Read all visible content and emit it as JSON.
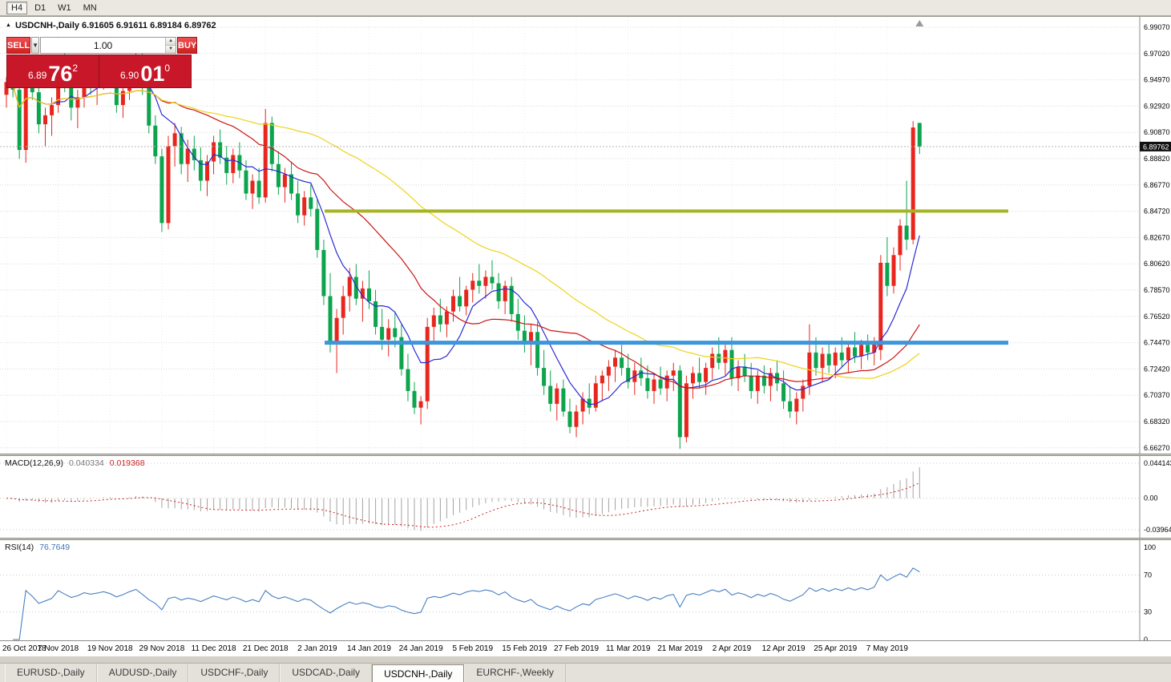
{
  "toolbar": {
    "timeframes": [
      {
        "label": "H4",
        "active": true
      },
      {
        "label": "D1",
        "active": false
      },
      {
        "label": "W1",
        "active": false
      },
      {
        "label": "MN",
        "active": false
      }
    ]
  },
  "chart": {
    "marker": "▲",
    "symbol_info": "USDCNH-,Daily 6.91605 6.91611 6.89184 6.89762",
    "current_price": "6.89762",
    "trade_panel": {
      "sell_label": "SELL",
      "buy_label": "BUY",
      "volume": "1.00",
      "sell_price": {
        "prefix": "6.89",
        "big": "76",
        "sup": "2"
      },
      "buy_price": {
        "prefix": "6.90",
        "big": "01",
        "sup": "0"
      }
    }
  },
  "macd_label": {
    "name": "MACD(12,26,9)",
    "main": "0.040334",
    "signal": "0.019368"
  },
  "rsi_label": {
    "name": "RSI(14)",
    "value": "76.7649"
  },
  "tabs": [
    {
      "label": "EURUSD-,Daily",
      "active": false
    },
    {
      "label": "AUDUSD-,Daily",
      "active": false
    },
    {
      "label": "USDCHF-,Daily",
      "active": false
    },
    {
      "label": "USDCAD-,Daily",
      "active": false
    },
    {
      "label": "USDCNH-,Daily",
      "active": true
    },
    {
      "label": "EURCHF-,Weekly",
      "active": false
    }
  ],
  "chart_data": {
    "type": "candlestick",
    "symbol": "USDCNH-",
    "timeframe": "Daily",
    "current_bar": {
      "open": 6.91605,
      "high": 6.91611,
      "low": 6.89184,
      "close": 6.89762
    },
    "price_axis_labels": [
      "6.99070",
      "6.97020",
      "6.94970",
      "6.92920",
      "6.90870",
      "6.88820",
      "6.86770",
      "6.84720",
      "6.82670",
      "6.80620",
      "6.78570",
      "6.76520",
      "6.74470",
      "6.72420",
      "6.70370",
      "6.68320",
      "6.66270"
    ],
    "date_labels": [
      "26 Oct 2018",
      "7 Nov 2018",
      "19 Nov 2018",
      "29 Nov 2018",
      "11 Dec 2018",
      "21 Dec 2018",
      "2 Jan 2019",
      "14 Jan 2019",
      "24 Jan 2019",
      "5 Feb 2019",
      "15 Feb 2019",
      "27 Feb 2019",
      "11 Mar 2019",
      "21 Mar 2019",
      "2 Apr 2019",
      "12 Apr 2019",
      "25 Apr 2019",
      "7 May 2019"
    ],
    "colors": {
      "bull": "#e8261e",
      "bear": "#0ca44d",
      "grid": "#d9d9d9",
      "bid_line": "#b9b9b9",
      "axis_text": "#000000",
      "price_tag_bg": "#111111"
    },
    "moving_averages": [
      {
        "period": 8,
        "color": "#2b2bd4"
      },
      {
        "period": 24,
        "color": "#cc1414"
      },
      {
        "period": 52,
        "color": "#edd317"
      }
    ],
    "levels": [
      {
        "name": "resistance-line",
        "price": 6.8473,
        "color": "#a6b420",
        "width": 4
      },
      {
        "name": "support-line",
        "price": 6.7447,
        "color": "#3d96da",
        "width": 5
      }
    ],
    "macd": {
      "fast": 12,
      "slow": 26,
      "signal": 9,
      "histogram_color": "#a3a3a3",
      "signal_color": "#cc2222",
      "axis_labels": [
        "0.044143",
        "0.00",
        "-0.039641"
      ]
    },
    "rsi": {
      "period": 14,
      "color": "#477fc0",
      "levels": [
        70,
        30
      ],
      "axis_labels": [
        "100",
        "70",
        "30",
        "0"
      ]
    },
    "ohlc": [
      [
        6.938,
        6.952,
        6.928,
        6.948
      ],
      [
        6.948,
        6.958,
        6.936,
        6.942
      ],
      [
        6.942,
        6.948,
        6.888,
        6.895
      ],
      [
        6.895,
        6.962,
        6.885,
        6.955
      ],
      [
        6.955,
        6.966,
        6.934,
        6.94
      ],
      [
        6.94,
        6.948,
        6.908,
        6.915
      ],
      [
        6.915,
        6.928,
        6.898,
        6.922
      ],
      [
        6.922,
        6.936,
        6.906,
        6.93
      ],
      [
        6.93,
        6.966,
        6.924,
        6.96
      ],
      [
        6.96,
        6.972,
        6.94,
        6.945
      ],
      [
        6.945,
        6.952,
        6.918,
        6.928
      ],
      [
        6.928,
        6.942,
        6.912,
        6.936
      ],
      [
        6.936,
        6.958,
        6.928,
        6.952
      ],
      [
        6.952,
        6.963,
        6.938,
        6.944
      ],
      [
        6.944,
        6.956,
        6.93,
        6.95
      ],
      [
        6.95,
        6.966,
        6.942,
        6.958
      ],
      [
        6.958,
        6.968,
        6.944,
        6.948
      ],
      [
        6.948,
        6.956,
        6.924,
        6.93
      ],
      [
        6.93,
        6.946,
        6.92,
        6.941
      ],
      [
        6.941,
        6.962,
        6.934,
        6.956
      ],
      [
        6.956,
        6.976,
        6.948,
        6.968
      ],
      [
        6.968,
        6.973,
        6.938,
        6.944
      ],
      [
        6.944,
        6.95,
        6.908,
        6.914
      ],
      [
        6.914,
        6.922,
        6.884,
        6.89
      ],
      [
        6.89,
        6.896,
        6.831,
        6.838
      ],
      [
        6.838,
        6.906,
        6.833,
        6.898
      ],
      [
        6.898,
        6.916,
        6.882,
        6.908
      ],
      [
        6.908,
        6.913,
        6.876,
        6.884
      ],
      [
        6.884,
        6.903,
        6.87,
        6.896
      ],
      [
        6.896,
        6.906,
        6.879,
        6.887
      ],
      [
        6.887,
        6.897,
        6.863,
        6.871
      ],
      [
        6.871,
        6.891,
        6.859,
        6.886
      ],
      [
        6.886,
        6.906,
        6.876,
        6.901
      ],
      [
        6.901,
        6.911,
        6.884,
        6.889
      ],
      [
        6.889,
        6.898,
        6.868,
        6.877
      ],
      [
        6.877,
        6.896,
        6.869,
        6.891
      ],
      [
        6.891,
        6.901,
        6.873,
        6.879
      ],
      [
        6.879,
        6.887,
        6.856,
        6.861
      ],
      [
        6.861,
        6.876,
        6.849,
        6.871
      ],
      [
        6.871,
        6.881,
        6.853,
        6.858
      ],
      [
        6.858,
        6.927,
        6.854,
        6.916
      ],
      [
        6.916,
        6.921,
        6.878,
        6.884
      ],
      [
        6.884,
        6.894,
        6.86,
        6.866
      ],
      [
        6.866,
        6.881,
        6.854,
        6.876
      ],
      [
        6.876,
        6.886,
        6.856,
        6.861
      ],
      [
        6.861,
        6.871,
        6.838,
        6.844
      ],
      [
        6.844,
        6.863,
        6.836,
        6.858
      ],
      [
        6.858,
        6.868,
        6.843,
        6.849
      ],
      [
        6.849,
        6.857,
        6.811,
        6.817
      ],
      [
        6.817,
        6.825,
        6.774,
        6.781
      ],
      [
        6.781,
        6.799,
        6.737,
        6.744
      ],
      [
        6.744,
        6.771,
        6.721,
        6.764
      ],
      [
        6.764,
        6.789,
        6.751,
        6.781
      ],
      [
        6.781,
        6.803,
        6.769,
        6.796
      ],
      [
        6.796,
        6.806,
        6.774,
        6.779
      ],
      [
        6.779,
        6.793,
        6.761,
        6.787
      ],
      [
        6.787,
        6.801,
        6.771,
        6.777
      ],
      [
        6.777,
        6.786,
        6.751,
        6.757
      ],
      [
        6.757,
        6.771,
        6.739,
        6.747
      ],
      [
        6.747,
        6.763,
        6.734,
        6.756
      ],
      [
        6.756,
        6.769,
        6.741,
        6.749
      ],
      [
        6.749,
        6.759,
        6.719,
        6.724
      ],
      [
        6.724,
        6.736,
        6.699,
        6.707
      ],
      [
        6.707,
        6.714,
        6.689,
        6.694
      ],
      [
        6.694,
        6.703,
        6.681,
        6.699
      ],
      [
        6.699,
        6.764,
        6.693,
        6.757
      ],
      [
        6.757,
        6.772,
        6.744,
        6.766
      ],
      [
        6.766,
        6.779,
        6.753,
        6.759
      ],
      [
        6.759,
        6.773,
        6.749,
        6.769
      ],
      [
        6.769,
        6.786,
        6.761,
        6.781
      ],
      [
        6.781,
        6.796,
        6.769,
        6.773
      ],
      [
        6.773,
        6.789,
        6.766,
        6.786
      ],
      [
        6.786,
        6.799,
        6.776,
        6.793
      ],
      [
        6.793,
        6.806,
        6.783,
        6.789
      ],
      [
        6.789,
        6.801,
        6.779,
        6.796
      ],
      [
        6.796,
        6.809,
        6.786,
        6.791
      ],
      [
        6.791,
        6.799,
        6.771,
        6.777
      ],
      [
        6.777,
        6.793,
        6.767,
        6.789
      ],
      [
        6.789,
        6.796,
        6.761,
        6.767
      ],
      [
        6.767,
        6.779,
        6.747,
        6.754
      ],
      [
        6.754,
        6.766,
        6.737,
        6.744
      ],
      [
        6.744,
        6.759,
        6.727,
        6.753
      ],
      [
        6.753,
        6.761,
        6.719,
        6.725
      ],
      [
        6.725,
        6.739,
        6.704,
        6.711
      ],
      [
        6.711,
        6.723,
        6.691,
        6.697
      ],
      [
        6.697,
        6.713,
        6.684,
        6.709
      ],
      [
        6.709,
        6.716,
        6.687,
        6.691
      ],
      [
        6.691,
        6.701,
        6.674,
        6.679
      ],
      [
        6.679,
        6.696,
        6.671,
        6.691
      ],
      [
        6.691,
        6.706,
        6.681,
        6.701
      ],
      [
        6.701,
        6.713,
        6.689,
        6.694
      ],
      [
        6.694,
        6.719,
        6.691,
        6.713
      ],
      [
        6.713,
        6.723,
        6.699,
        6.719
      ],
      [
        6.719,
        6.731,
        6.707,
        6.726
      ],
      [
        6.726,
        6.739,
        6.714,
        6.733
      ],
      [
        6.733,
        6.743,
        6.719,
        6.725
      ],
      [
        6.725,
        6.736,
        6.709,
        6.714
      ],
      [
        6.714,
        6.729,
        6.704,
        6.723
      ],
      [
        6.723,
        6.733,
        6.711,
        6.717
      ],
      [
        6.717,
        6.727,
        6.701,
        6.707
      ],
      [
        6.707,
        6.721,
        6.697,
        6.716
      ],
      [
        6.716,
        6.726,
        6.704,
        6.709
      ],
      [
        6.709,
        6.723,
        6.699,
        6.719
      ],
      [
        6.719,
        6.729,
        6.707,
        6.723
      ],
      [
        6.723,
        6.727,
        6.662,
        6.671
      ],
      [
        6.671,
        6.719,
        6.667,
        6.713
      ],
      [
        6.713,
        6.726,
        6.701,
        6.721
      ],
      [
        6.721,
        6.733,
        6.709,
        6.714
      ],
      [
        6.714,
        6.729,
        6.704,
        6.725
      ],
      [
        6.725,
        6.741,
        6.716,
        6.736
      ],
      [
        6.736,
        6.749,
        6.724,
        6.729
      ],
      [
        6.729,
        6.743,
        6.719,
        6.739
      ],
      [
        6.739,
        6.749,
        6.711,
        6.717
      ],
      [
        6.717,
        6.731,
        6.707,
        6.726
      ],
      [
        6.726,
        6.736,
        6.714,
        6.719
      ],
      [
        6.719,
        6.729,
        6.701,
        6.707
      ],
      [
        6.707,
        6.723,
        6.697,
        6.719
      ],
      [
        6.719,
        6.727,
        6.705,
        6.711
      ],
      [
        6.711,
        6.725,
        6.699,
        6.721
      ],
      [
        6.721,
        6.731,
        6.707,
        6.713
      ],
      [
        6.713,
        6.723,
        6.693,
        6.699
      ],
      [
        6.699,
        6.711,
        6.686,
        6.691
      ],
      [
        6.691,
        6.706,
        6.681,
        6.701
      ],
      [
        6.701,
        6.716,
        6.691,
        6.711
      ],
      [
        6.711,
        6.759,
        6.704,
        6.737
      ],
      [
        6.737,
        6.749,
        6.719,
        6.725
      ],
      [
        6.725,
        6.741,
        6.714,
        6.736
      ],
      [
        6.736,
        6.746,
        6.721,
        6.727
      ],
      [
        6.727,
        6.741,
        6.717,
        6.737
      ],
      [
        6.737,
        6.749,
        6.726,
        6.731
      ],
      [
        6.731,
        6.745,
        6.721,
        6.741
      ],
      [
        6.741,
        6.753,
        6.729,
        6.734
      ],
      [
        6.734,
        6.747,
        6.724,
        6.743
      ],
      [
        6.743,
        6.751,
        6.731,
        6.737
      ],
      [
        6.737,
        6.749,
        6.727,
        6.746
      ],
      [
        6.739,
        6.813,
        6.731,
        6.807
      ],
      [
        6.807,
        6.827,
        6.781,
        6.789
      ],
      [
        6.789,
        6.819,
        6.783,
        6.813
      ],
      [
        6.813,
        6.841,
        6.801,
        6.836
      ],
      [
        6.836,
        6.871,
        6.817,
        6.825
      ],
      [
        6.825,
        6.9175,
        6.8215,
        6.9125
      ],
      [
        6.91605,
        6.91611,
        6.89184,
        6.89762
      ]
    ]
  }
}
